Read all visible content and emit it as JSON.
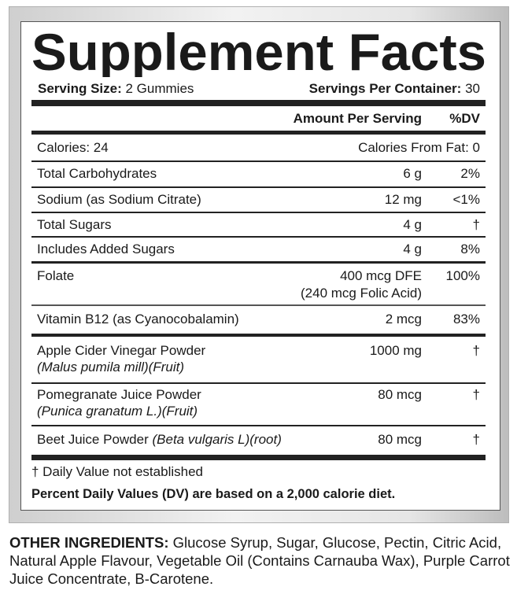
{
  "title": "Supplement Facts",
  "serving": {
    "size_label": "Serving Size:",
    "size_value": "2 Gummies",
    "per_container_label": "Servings Per Container:",
    "per_container_value": "30"
  },
  "header": {
    "amount": "Amount Per Serving",
    "dv": "%DV"
  },
  "calories": {
    "label": "Calories: 24",
    "from_fat": "Calories From Fat: 0"
  },
  "rows": [
    {
      "name": "Total Carbohydrates",
      "amount": "6 g",
      "dv": "2%"
    },
    {
      "name": "Sodium (as Sodium Citrate)",
      "amount": "12 mg",
      "dv": "<1%"
    },
    {
      "name": "Total Sugars",
      "amount": "4 g",
      "dv": "†"
    },
    {
      "name": "Includes Added Sugars",
      "amount": "4 g",
      "dv": "8%"
    },
    {
      "name": "Folate",
      "amount": "400 mcg DFE",
      "amount2": "(240 mcg Folic Acid)",
      "dv": "100%"
    },
    {
      "name": "Vitamin B12 (as Cyanocobalamin)",
      "amount": "2 mcg",
      "dv": "83%"
    },
    {
      "name": "Apple Cider Vinegar Powder",
      "sub": "(Malus pumila mill)(Fruit)",
      "amount": "1000 mg",
      "dv": "†"
    },
    {
      "name": "Pomegranate Juice Powder",
      "sub": "(Punica granatum L.)(Fruit)",
      "amount": "80 mcg",
      "dv": "†"
    },
    {
      "name": "Beet Juice Powder",
      "sub": "(Beta vulgaris L)(root)",
      "amount": "80 mcg",
      "dv": "†"
    }
  ],
  "footnotes": {
    "dagger": "† Daily Value not established",
    "percent": "Percent Daily Values (DV) are based on a 2,000 calorie diet."
  },
  "other_ingredients": {
    "label": "OTHER INGREDIENTS:",
    "text": "Glucose Syrup, Sugar, Glucose, Pectin, Citric Acid, Natural Apple Flavour, Vegetable Oil (Contains Carnauba Wax), Purple Carrot Juice Concentrate, B-Carotene."
  }
}
